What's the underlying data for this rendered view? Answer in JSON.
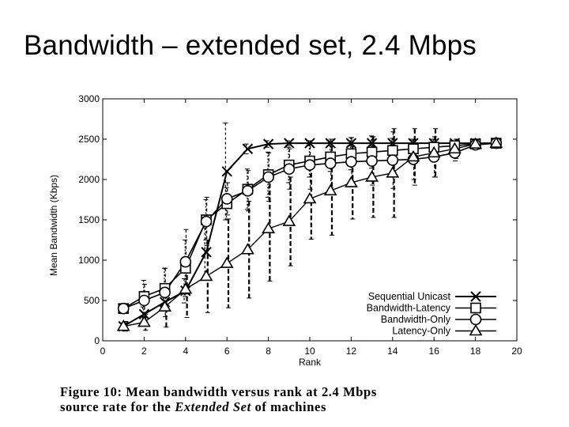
{
  "slide": {
    "title": "Bandwidth – extended set, 2.4 Mbps"
  },
  "caption": {
    "line1": "Figure 10:  Mean bandwidth versus rank at 2.4 Mbps",
    "line2_prefix": "source rate for the ",
    "line2_italic": "Extended Set",
    "line2_suffix": " of machines"
  },
  "chart_data": {
    "type": "line",
    "title": "",
    "xlabel": "Rank",
    "ylabel": "Mean Bandwidth (Kbps)",
    "xlim": [
      0,
      20
    ],
    "ylim": [
      0,
      3000
    ],
    "xticks": [
      0,
      2,
      4,
      6,
      8,
      10,
      12,
      14,
      16,
      18,
      20
    ],
    "yticks": [
      0,
      500,
      1000,
      1500,
      2000,
      2500,
      3000
    ],
    "legend_position": "bottom-right",
    "error_bars": true,
    "series": [
      {
        "name": "Sequential Unicast",
        "marker": "x",
        "x": [
          1,
          2,
          3,
          4,
          5,
          6,
          7,
          8,
          9,
          10,
          11,
          12,
          13,
          14,
          15,
          16,
          17,
          18,
          19
        ],
        "y": [
          180,
          330,
          480,
          620,
          1100,
          2100,
          2380,
          2440,
          2450,
          2450,
          2450,
          2450,
          2450,
          2450,
          2450,
          2450,
          2450,
          2450,
          2450
        ],
        "err": [
          40,
          90,
          110,
          150,
          300,
          600,
          60,
          40,
          30,
          30,
          30,
          30,
          30,
          30,
          30,
          30,
          20,
          15,
          10
        ]
      },
      {
        "name": "Bandwidth-Latency",
        "marker": "square",
        "x": [
          1,
          2,
          3,
          4,
          5,
          6,
          7,
          8,
          9,
          10,
          11,
          12,
          13,
          14,
          15,
          16,
          17,
          18,
          19
        ],
        "y": [
          400,
          550,
          650,
          900,
          1500,
          1700,
          1880,
          2060,
          2180,
          2230,
          2280,
          2320,
          2340,
          2360,
          2380,
          2400,
          2420,
          2440,
          2450
        ],
        "err": [
          60,
          200,
          250,
          350,
          250,
          200,
          250,
          280,
          220,
          200,
          180,
          200,
          200,
          150,
          120,
          100,
          60,
          30,
          20
        ]
      },
      {
        "name": "Bandwidth-Only",
        "marker": "circle",
        "x": [
          1,
          2,
          3,
          4,
          5,
          6,
          7,
          8,
          9,
          10,
          11,
          12,
          13,
          14,
          15,
          16,
          17,
          18,
          19
        ],
        "y": [
          400,
          500,
          600,
          980,
          1480,
          1760,
          1860,
          2030,
          2130,
          2180,
          2200,
          2220,
          2230,
          2240,
          2250,
          2280,
          2330,
          2430,
          2450
        ],
        "err": [
          60,
          200,
          300,
          400,
          300,
          200,
          250,
          300,
          250,
          300,
          300,
          300,
          300,
          350,
          250,
          250,
          100,
          30,
          20
        ]
      },
      {
        "name": "Latency-Only",
        "marker": "triangle",
        "x": [
          1,
          2,
          3,
          4,
          5,
          6,
          7,
          8,
          9,
          10,
          11,
          12,
          13,
          14,
          15,
          16,
          17,
          18,
          19
        ],
        "y": [
          180,
          230,
          420,
          640,
          800,
          960,
          1130,
          1390,
          1480,
          1760,
          1860,
          1960,
          2030,
          2080,
          2280,
          2330,
          2380,
          2440,
          2450
        ],
        "err": [
          60,
          100,
          250,
          350,
          450,
          550,
          600,
          650,
          550,
          500,
          550,
          450,
          500,
          550,
          350,
          300,
          120,
          40,
          20
        ]
      }
    ]
  }
}
